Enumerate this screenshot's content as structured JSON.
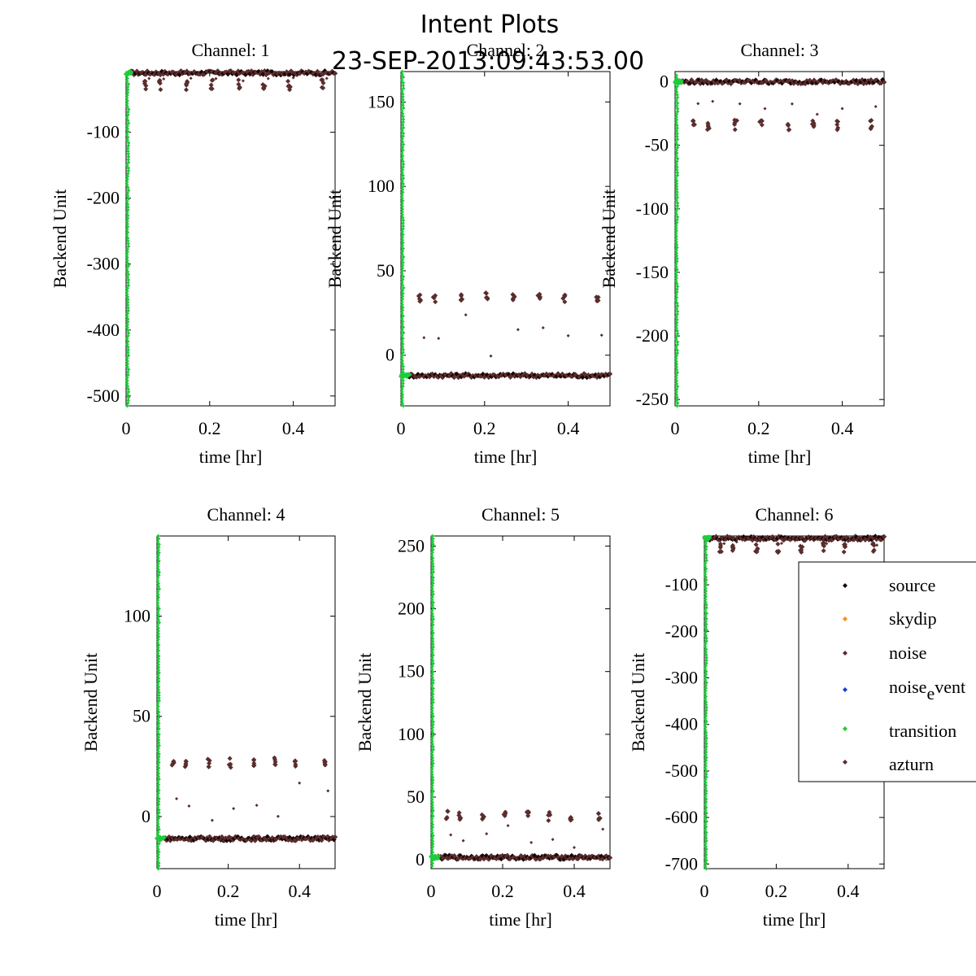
{
  "figure": {
    "title": "Intent Plots",
    "subtitle": "23-SEP-2013:09:43:53.00"
  },
  "colors": {
    "source": "#1a0505",
    "skydip": "#ff8c1a",
    "noise": "#5a2d2d",
    "noise_event": "#1f3bd6",
    "transition": "#1ecc3a",
    "azturn": "#5a2d2d",
    "axis": "#000000"
  },
  "chart_data": [
    {
      "type": "scatter",
      "title": "Channel: 1",
      "xlabel": "time [hr]",
      "ylabel": "Backend Unit",
      "xlim": [
        0,
        0.5
      ],
      "ylim": [
        -515,
        -8
      ],
      "xticks": [
        0,
        0.2,
        0.4
      ],
      "xtick_labels": [
        "0",
        "0.2",
        "0.4"
      ],
      "yticks": [
        -100,
        -200,
        -300,
        -400,
        -500
      ],
      "ytick_labels": [
        "-100",
        "-200",
        "-300",
        "-400",
        "-500"
      ],
      "baseline": -10,
      "spike": -28,
      "transition_range": [
        -515,
        -10
      ],
      "transition_end": 0.012
    },
    {
      "type": "scatter",
      "title": "Channel: 2",
      "xlabel": "time [hr]",
      "ylabel": "Backend Unit",
      "xlim": [
        0,
        0.5
      ],
      "ylim": [
        -30,
        168
      ],
      "xticks": [
        0,
        0.2,
        0.4
      ],
      "xtick_labels": [
        "0",
        "0.2",
        "0.4"
      ],
      "yticks": [
        0,
        50,
        100,
        150
      ],
      "ytick_labels": [
        "0",
        "50",
        "100",
        "150"
      ],
      "baseline": -12,
      "spike": 34,
      "transition_range": [
        -30,
        168
      ],
      "transition_end": 0.02
    },
    {
      "type": "scatter",
      "title": "Channel: 3",
      "xlabel": "time [hr]",
      "ylabel": "Backend Unit",
      "xlim": [
        0,
        0.5
      ],
      "ylim": [
        -255,
        8
      ],
      "xticks": [
        0,
        0.2,
        0.4
      ],
      "xtick_labels": [
        "0",
        "0.2",
        "0.4"
      ],
      "yticks": [
        0,
        -50,
        -100,
        -150,
        -200,
        -250
      ],
      "ytick_labels": [
        "0",
        "-50",
        "-100",
        "-150",
        "-200",
        "-250"
      ],
      "baseline": 0,
      "spike": -34,
      "transition_range": [
        -255,
        5
      ],
      "transition_end": 0.015
    },
    {
      "type": "scatter",
      "title": "Channel: 4",
      "xlabel": "time [hr]",
      "ylabel": "Backend Unit",
      "xlim": [
        0,
        0.5
      ],
      "ylim": [
        -26,
        140
      ],
      "xticks": [
        0,
        0.2,
        0.4
      ],
      "xtick_labels": [
        "0",
        "0.2",
        "0.4"
      ],
      "yticks": [
        0,
        50,
        100
      ],
      "ytick_labels": [
        "0",
        "50",
        "100"
      ],
      "baseline": -11,
      "spike": 27,
      "transition_range": [
        -26,
        140
      ],
      "transition_end": 0.02
    },
    {
      "type": "scatter",
      "title": "Channel: 5",
      "xlabel": "time [hr]",
      "ylabel": "Backend Unit",
      "xlim": [
        0,
        0.5
      ],
      "ylim": [
        -7,
        258
      ],
      "xticks": [
        0,
        0.2,
        0.4
      ],
      "xtick_labels": [
        "0",
        "0.2",
        "0.4"
      ],
      "yticks": [
        0,
        50,
        100,
        150,
        200,
        250
      ],
      "ytick_labels": [
        "0",
        "50",
        "100",
        "150",
        "200",
        "250"
      ],
      "baseline": 2,
      "spike": 35,
      "transition_range": [
        -5,
        258
      ],
      "transition_end": 0.02
    },
    {
      "type": "scatter",
      "title": "Channel: 6",
      "xlabel": "time [hr]",
      "ylabel": "Backend Unit",
      "xlim": [
        0,
        0.5
      ],
      "ylim": [
        -710,
        5
      ],
      "xticks": [
        0,
        0.2,
        0.4
      ],
      "xtick_labels": [
        "0",
        "0.2",
        "0.4"
      ],
      "yticks": [
        -100,
        -200,
        -300,
        -400,
        -500,
        -600,
        -700
      ],
      "ytick_labels": [
        "-100",
        "-200",
        "-300",
        "-400",
        "-500",
        "-600",
        "-700"
      ],
      "baseline": 0,
      "spike": -20,
      "transition_range": [
        -710,
        0
      ],
      "transition_end": 0.015
    }
  ],
  "legend": {
    "placement": "right",
    "entries": [
      {
        "label": "source",
        "key": "source"
      },
      {
        "label": "skydip",
        "key": "skydip"
      },
      {
        "label": "noise",
        "key": "noise"
      },
      {
        "label": "noise",
        "sub": "e",
        "rest": "vent",
        "key": "noise_event"
      },
      {
        "label": "transition",
        "key": "transition"
      },
      {
        "label": "azturn",
        "key": "azturn"
      }
    ]
  }
}
